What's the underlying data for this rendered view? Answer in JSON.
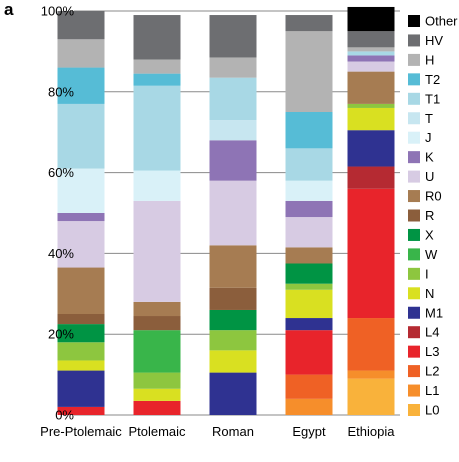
{
  "panel_label": "a",
  "chart_data": {
    "type": "bar",
    "stacked": true,
    "categories": [
      "Pre-Ptolemaic",
      "Ptolemaic",
      "Roman",
      "Egypt",
      "Ethiopia"
    ],
    "ylim": [
      0,
      100
    ],
    "yticks": [
      0,
      20,
      40,
      60,
      80,
      100
    ],
    "ytick_labels": [
      "0%",
      "20%",
      "40%",
      "60%",
      "80%",
      "100%"
    ],
    "grid": "horizontal",
    "legend_position": "right",
    "series": [
      {
        "name": "L0",
        "color": "#F9B23B",
        "values": [
          0,
          0,
          0,
          0,
          9
        ]
      },
      {
        "name": "L1",
        "color": "#F68E2B",
        "values": [
          0,
          0,
          0,
          4,
          2
        ]
      },
      {
        "name": "L2",
        "color": "#EF6125",
        "values": [
          0,
          0,
          0,
          6,
          13
        ]
      },
      {
        "name": "L3",
        "color": "#E8242B",
        "values": [
          2,
          3.5,
          0,
          11,
          32
        ]
      },
      {
        "name": "L4",
        "color": "#B52A32",
        "values": [
          0,
          0,
          0,
          0,
          5.5
        ]
      },
      {
        "name": "M1",
        "color": "#2F3291",
        "values": [
          9,
          0,
          10.5,
          3,
          9
        ]
      },
      {
        "name": "N",
        "color": "#D9E021",
        "values": [
          2.5,
          3,
          5.5,
          7,
          5.5
        ]
      },
      {
        "name": "I",
        "color": "#8DC63F",
        "values": [
          4.5,
          4,
          5,
          1.5,
          1
        ]
      },
      {
        "name": "W",
        "color": "#39B54A",
        "values": [
          0,
          10.5,
          0,
          0,
          0
        ]
      },
      {
        "name": "X",
        "color": "#009444",
        "values": [
          4.5,
          0,
          5,
          5,
          0
        ]
      },
      {
        "name": "R",
        "color": "#8B5E3C",
        "values": [
          2.5,
          3.5,
          5.5,
          0,
          0
        ]
      },
      {
        "name": "R0",
        "color": "#A67C52",
        "values": [
          11.5,
          3.5,
          10.5,
          4,
          8
        ]
      },
      {
        "name": "U",
        "color": "#D7CBE3",
        "values": [
          11.5,
          25,
          16,
          7.5,
          2.5
        ]
      },
      {
        "name": "K",
        "color": "#8E74B5",
        "values": [
          2,
          0,
          10,
          4,
          1.5
        ]
      },
      {
        "name": "J",
        "color": "#D9F1F8",
        "values": [
          11,
          7.5,
          0,
          5,
          0
        ]
      },
      {
        "name": "T",
        "color": "#C7E6F0",
        "values": [
          0,
          0,
          5,
          0,
          0
        ]
      },
      {
        "name": "T1",
        "color": "#A8D8E5",
        "values": [
          16,
          21,
          10.5,
          8,
          1
        ]
      },
      {
        "name": "T2",
        "color": "#56BCD6",
        "values": [
          9,
          3,
          0,
          9,
          0
        ]
      },
      {
        "name": "H",
        "color": "#B3B3B3",
        "values": [
          7,
          3.5,
          5,
          20,
          1
        ]
      },
      {
        "name": "HV",
        "color": "#6D6E71",
        "values": [
          7,
          11,
          10.5,
          4,
          4
        ]
      },
      {
        "name": "Other",
        "color": "#000000",
        "values": [
          0,
          0,
          0,
          0,
          6
        ]
      }
    ]
  }
}
